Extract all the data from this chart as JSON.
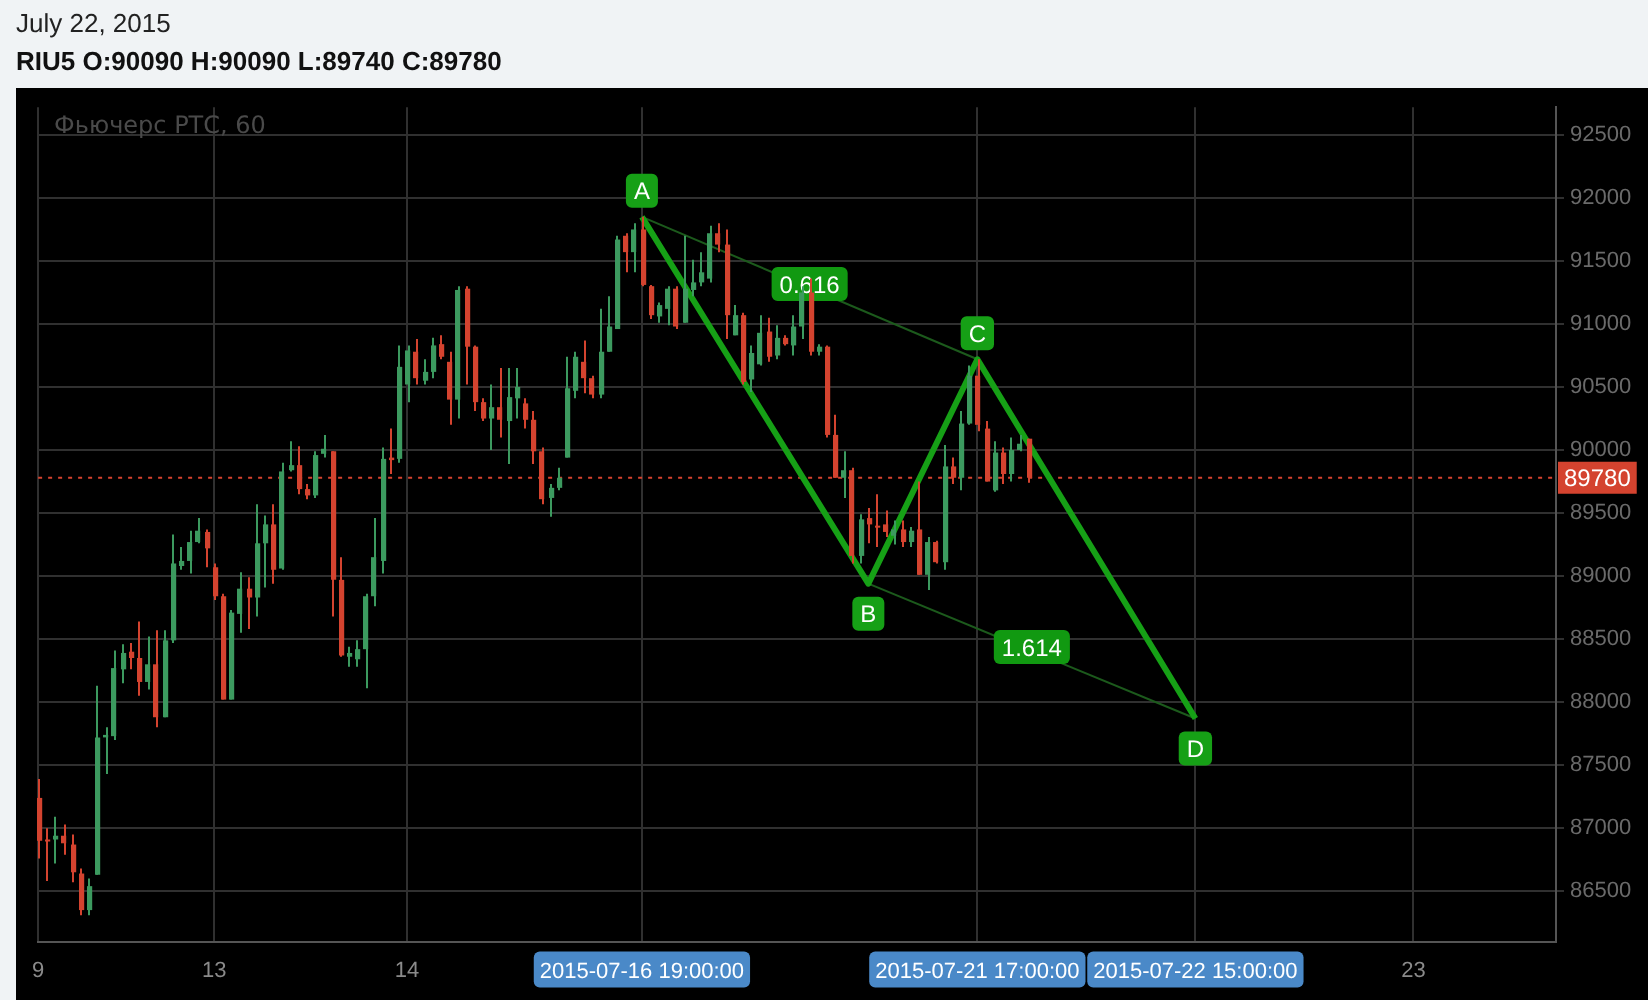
{
  "chart_data": {
    "type": "candlestick",
    "title": "RIU5 O:90090 H:90090 L:89740 C:89780",
    "subtitle": "Фьючерс РТС, 60",
    "annotations": [
      "July 22, 2015",
      "0.616",
      "1.614"
    ],
    "categories": [
      "9",
      null,
      null,
      null,
      null,
      null,
      null,
      null,
      null,
      null,
      null,
      null,
      null,
      null,
      null,
      null,
      null,
      null,
      null,
      null,
      null,
      "13",
      null,
      null,
      null,
      null,
      null,
      null,
      null,
      null,
      null,
      null,
      null,
      null,
      null,
      null,
      null,
      null,
      null,
      null,
      null,
      null,
      null,
      null,
      "14",
      null,
      null,
      null,
      null,
      null,
      null,
      null,
      null,
      null,
      null,
      null,
      null,
      null,
      null,
      null,
      null,
      null,
      null,
      null,
      null,
      null,
      null,
      null,
      null,
      null,
      null,
      null,
      "2015-07-16 19:00:00",
      null,
      null,
      null,
      null,
      null,
      null,
      null,
      null,
      null,
      null,
      null,
      null,
      null,
      null,
      null,
      null,
      null,
      null,
      null,
      null,
      null,
      null,
      null,
      null,
      null,
      null,
      null,
      null,
      null,
      null,
      null,
      null,
      null,
      null,
      null,
      null,
      null,
      null,
      null,
      "2015-07-21 17:00:00",
      null,
      null,
      null,
      null,
      null,
      null,
      null,
      null,
      null,
      null,
      null,
      null,
      null,
      null,
      null,
      null,
      null,
      null,
      null,
      null,
      null,
      null,
      null,
      null,
      null,
      "2015-07-22 15:00:00",
      null,
      null,
      null,
      null,
      null,
      null,
      null,
      null,
      null,
      null,
      null,
      null,
      null,
      null,
      null,
      null,
      null,
      null,
      null,
      null,
      null,
      null,
      null,
      null,
      null,
      "23",
      null,
      null,
      null,
      null,
      null,
      null,
      null,
      null,
      null,
      null,
      null,
      null,
      null,
      null,
      null,
      null,
      null
    ],
    "ohlc": [
      [
        87240,
        87390,
        86760,
        86900
      ],
      [
        86910,
        87000,
        86580,
        86900
      ],
      [
        86910,
        87090,
        86720,
        86940
      ],
      [
        86940,
        87030,
        86790,
        86880
      ],
      [
        86870,
        86950,
        86570,
        86650
      ],
      [
        86640,
        86680,
        86310,
        86350
      ],
      [
        86350,
        86600,
        86310,
        86540
      ],
      [
        86630,
        88130,
        86630,
        87720
      ],
      [
        87720,
        87800,
        87430,
        87740
      ],
      [
        87730,
        88410,
        87700,
        88270
      ],
      [
        88260,
        88460,
        88150,
        88390
      ],
      [
        88400,
        88470,
        88260,
        88350
      ],
      [
        88350,
        88640,
        88050,
        88160
      ],
      [
        88160,
        88520,
        88100,
        88300
      ],
      [
        88300,
        88570,
        87800,
        87880
      ],
      [
        87880,
        88570,
        87880,
        88490
      ],
      [
        88490,
        89330,
        88470,
        89100
      ],
      [
        89080,
        89230,
        89050,
        89120
      ],
      [
        89120,
        89360,
        89020,
        89270
      ],
      [
        89270,
        89460,
        89260,
        89360
      ],
      [
        89350,
        89370,
        89070,
        89220
      ],
      [
        89070,
        89100,
        88810,
        88840
      ],
      [
        88840,
        88860,
        88020,
        88020
      ],
      [
        88020,
        88730,
        88020,
        88710
      ],
      [
        88700,
        89030,
        88550,
        88900
      ],
      [
        88900,
        88990,
        88580,
        88830
      ],
      [
        88830,
        89570,
        88680,
        89260
      ],
      [
        89260,
        89480,
        88910,
        89410
      ],
      [
        89410,
        89570,
        88940,
        89050
      ],
      [
        89060,
        89900,
        89050,
        89830
      ],
      [
        89840,
        90070,
        89830,
        89880
      ],
      [
        89880,
        90030,
        89650,
        89690
      ],
      [
        89690,
        89730,
        89610,
        89640
      ],
      [
        89640,
        89990,
        89620,
        89960
      ],
      [
        89970,
        90120,
        89940,
        90010
      ],
      [
        89990,
        89990,
        88680,
        88970
      ],
      [
        88970,
        89150,
        88360,
        88370
      ],
      [
        88360,
        88440,
        88280,
        88390
      ],
      [
        88340,
        88490,
        88280,
        88420
      ],
      [
        88420,
        88860,
        88110,
        88840
      ],
      [
        88840,
        89460,
        88760,
        89150
      ],
      [
        89120,
        90020,
        89020,
        89930
      ],
      [
        89940,
        90170,
        89810,
        89920
      ],
      [
        89930,
        90830,
        89900,
        90660
      ],
      [
        90520,
        90830,
        90380,
        90790
      ],
      [
        90780,
        90880,
        90520,
        90570
      ],
      [
        90550,
        90720,
        90520,
        90620
      ],
      [
        90620,
        90890,
        90570,
        90830
      ],
      [
        90840,
        90910,
        90720,
        90740
      ],
      [
        90700,
        90780,
        90200,
        90400
      ],
      [
        90400,
        91300,
        90250,
        91270
      ],
      [
        91280,
        91300,
        90520,
        90820
      ],
      [
        90820,
        90830,
        90310,
        90380
      ],
      [
        90380,
        90410,
        90230,
        90250
      ],
      [
        90250,
        90520,
        90000,
        90340
      ],
      [
        90340,
        90650,
        90100,
        90240
      ],
      [
        90230,
        90650,
        89890,
        90420
      ],
      [
        90410,
        90650,
        90250,
        90500
      ],
      [
        90370,
        90410,
        90170,
        90240
      ],
      [
        90240,
        90310,
        89890,
        89990
      ],
      [
        89990,
        90020,
        89570,
        89610
      ],
      [
        89620,
        89730,
        89470,
        89700
      ],
      [
        89700,
        89860,
        89680,
        89780
      ],
      [
        89940,
        90740,
        89940,
        90490
      ],
      [
        90470,
        90780,
        90410,
        90740
      ],
      [
        90700,
        90870,
        90450,
        90570
      ],
      [
        90570,
        90590,
        90410,
        90440
      ],
      [
        90440,
        91120,
        90410,
        90780
      ],
      [
        90780,
        91220,
        90780,
        90980
      ],
      [
        90960,
        91700,
        90960,
        91670
      ],
      [
        91700,
        91720,
        91410,
        91570
      ],
      [
        91570,
        91800,
        91410,
        91750
      ],
      [
        91750,
        91850,
        91300,
        91310
      ],
      [
        91300,
        91310,
        91040,
        91070
      ],
      [
        91060,
        91170,
        91010,
        91150
      ],
      [
        91120,
        91300,
        90990,
        91280
      ],
      [
        91280,
        91300,
        90960,
        90980
      ],
      [
        91010,
        91700,
        91010,
        91280
      ],
      [
        91270,
        91510,
        91220,
        91330
      ],
      [
        91330,
        91570,
        91300,
        91410
      ],
      [
        91360,
        91780,
        91330,
        91720
      ],
      [
        91720,
        91800,
        91570,
        91630
      ],
      [
        91630,
        91750,
        90880,
        91070
      ],
      [
        90910,
        91150,
        90910,
        91070
      ],
      [
        91070,
        91090,
        90520,
        90540
      ],
      [
        90560,
        90830,
        90460,
        90770
      ],
      [
        90680,
        91070,
        90670,
        90930
      ],
      [
        90940,
        91050,
        90700,
        90740
      ],
      [
        90750,
        90990,
        90720,
        90890
      ],
      [
        90890,
        90910,
        90830,
        90840
      ],
      [
        90830,
        91070,
        90750,
        90980
      ],
      [
        90980,
        91300,
        90880,
        91250
      ],
      [
        91250,
        91360,
        90750,
        90780
      ],
      [
        90780,
        90840,
        90750,
        90820
      ],
      [
        90820,
        90830,
        90100,
        90120
      ],
      [
        90120,
        90280,
        89780,
        89780
      ],
      [
        89780,
        89990,
        89620,
        89840
      ],
      [
        89840,
        89860,
        89100,
        89160
      ],
      [
        89160,
        89490,
        89100,
        89450
      ],
      [
        89460,
        89540,
        89260,
        89410
      ],
      [
        89400,
        89650,
        89230,
        89390
      ],
      [
        89410,
        89520,
        89310,
        89350
      ],
      [
        89320,
        89440,
        89250,
        89370
      ],
      [
        89370,
        89440,
        89230,
        89270
      ],
      [
        89270,
        89390,
        89230,
        89360
      ],
      [
        89370,
        89750,
        89010,
        89010
      ],
      [
        89010,
        89310,
        88890,
        89270
      ],
      [
        89270,
        89280,
        89100,
        89110
      ],
      [
        89110,
        90040,
        89050,
        89870
      ],
      [
        89870,
        89940,
        89730,
        89780
      ],
      [
        89780,
        90310,
        89680,
        90210
      ],
      [
        90210,
        90670,
        90200,
        90590
      ],
      [
        90590,
        90720,
        90150,
        90200
      ],
      [
        90170,
        90230,
        89750,
        89750
      ],
      [
        89680,
        90070,
        89670,
        89980
      ],
      [
        89980,
        90020,
        89730,
        89810
      ],
      [
        89810,
        90100,
        89750,
        90000
      ],
      [
        90000,
        90120,
        89990,
        90050
      ],
      [
        90090,
        90090,
        89740,
        89780
      ],
      null,
      null,
      null,
      null,
      null,
      null,
      null,
      null,
      null,
      null,
      null,
      null,
      null,
      null,
      null,
      null,
      null,
      null,
      null,
      null,
      null,
      null,
      null,
      null,
      null,
      null,
      null,
      null,
      null,
      null,
      null,
      null,
      null,
      null,
      null,
      null,
      null,
      null,
      null,
      null,
      null,
      null,
      null,
      null,
      null,
      null,
      null,
      null,
      null,
      null,
      null,
      null,
      null,
      null,
      null,
      null,
      null,
      null,
      null,
      null,
      null,
      null,
      null
    ],
    "colors": [
      "#d4432f",
      "#d4432f",
      "#3c9a5f",
      "#d4432f",
      "#d4432f",
      "#d4432f",
      "#3c9a5f",
      "#3c9a5f",
      "#3c9a5f",
      "#3c9a5f",
      "#3c9a5f",
      "#d4432f",
      "#d4432f",
      "#3c9a5f",
      "#d4432f",
      "#3c9a5f",
      "#3c9a5f",
      "#3c9a5f",
      "#3c9a5f",
      "#3c9a5f",
      "#d4432f",
      "#d4432f",
      "#d4432f",
      "#3c9a5f",
      "#3c9a5f",
      "#d4432f",
      "#3c9a5f",
      "#3c9a5f",
      "#d4432f",
      "#3c9a5f",
      "#3c9a5f",
      "#d4432f",
      "#d4432f",
      "#3c9a5f",
      "#3c9a5f",
      "#d4432f",
      "#d4432f",
      "#3c9a5f",
      "#3c9a5f",
      "#3c9a5f",
      "#3c9a5f",
      "#3c9a5f",
      "#d4432f",
      "#3c9a5f",
      "#3c9a5f",
      "#d4432f",
      "#3c9a5f",
      "#3c9a5f",
      "#d4432f",
      "#d4432f",
      "#3c9a5f",
      "#d4432f",
      "#d4432f",
      "#d4432f",
      "#3c9a5f",
      "#d4432f",
      "#3c9a5f",
      "#3c9a5f",
      "#d4432f",
      "#d4432f",
      "#d4432f",
      "#3c9a5f",
      "#3c9a5f",
      "#3c9a5f",
      "#3c9a5f",
      "#d4432f",
      "#d4432f",
      "#3c9a5f",
      "#3c9a5f",
      "#3c9a5f",
      "#d4432f",
      "#3c9a5f",
      "#d4432f",
      "#d4432f",
      "#3c9a5f",
      "#3c9a5f",
      "#d4432f",
      "#3c9a5f",
      "#3c9a5f",
      "#3c9a5f",
      "#3c9a5f",
      "#d4432f",
      "#d4432f",
      "#3c9a5f",
      "#d4432f",
      "#3c9a5f",
      "#3c9a5f",
      "#d4432f",
      "#3c9a5f",
      "#d4432f",
      "#3c9a5f",
      "#3c9a5f",
      "#d4432f",
      "#3c9a5f",
      "#d4432f",
      "#d4432f",
      "#3c9a5f",
      "#d4432f",
      "#3c9a5f",
      "#d4432f",
      "#d4432f",
      "#d4432f",
      "#3c9a5f",
      "#d4432f",
      "#3c9a5f",
      "#d4432f",
      "#3c9a5f",
      "#d4432f",
      "#3c9a5f",
      "#d4432f",
      "#3c9a5f",
      "#3c9a5f",
      "#d4432f",
      "#d4432f",
      "#3c9a5f",
      "#d4432f",
      "#3c9a5f",
      "#3c9a5f",
      "#d4432f",
      null,
      null,
      null,
      null,
      null,
      null,
      null,
      null,
      null,
      null,
      null,
      null,
      null,
      null,
      null,
      null,
      null,
      null,
      null,
      null,
      null,
      null,
      null,
      null,
      null,
      null,
      null,
      null,
      null,
      null,
      null,
      null,
      null,
      null,
      null,
      null,
      null,
      null,
      null,
      null,
      null,
      null,
      null,
      null,
      null,
      null,
      null,
      null,
      null,
      null,
      null,
      null,
      null,
      null,
      null,
      null,
      null,
      null,
      null,
      null,
      null,
      null,
      null
    ],
    "series": [
      {
        "type": "line",
        "color": "#16a016",
        "values": [
          null,
          null,
          null,
          null,
          null,
          null,
          null,
          null,
          null,
          null,
          null,
          null,
          null,
          null,
          null,
          null,
          null,
          null,
          null,
          null,
          null,
          null,
          null,
          null,
          null,
          null,
          null,
          null,
          null,
          null,
          null,
          null,
          null,
          null,
          null,
          null,
          null,
          null,
          null,
          null,
          null,
          null,
          null,
          null,
          null,
          null,
          null,
          null,
          null,
          null,
          null,
          null,
          null,
          null,
          null,
          null,
          null,
          null,
          null,
          null,
          null,
          null,
          null,
          null,
          null,
          null,
          null,
          null,
          null,
          null,
          null,
          null,
          91850,
          null,
          null,
          null,
          null,
          null,
          null,
          null,
          null,
          null,
          null,
          null,
          null,
          null,
          null,
          null,
          null,
          null,
          null,
          null,
          null,
          null,
          null,
          null,
          null,
          null,
          null,
          88940,
          null,
          null,
          null,
          null,
          null,
          null,
          null,
          null,
          null,
          null,
          null,
          null,
          90720,
          null,
          null,
          null,
          null,
          null,
          null,
          null,
          null,
          null,
          null,
          null,
          null,
          null,
          null,
          null,
          null,
          null,
          null,
          null,
          null,
          null,
          null,
          null,
          null,
          null,
          87870,
          null,
          null,
          null,
          null,
          null,
          null,
          null,
          null,
          null,
          null,
          null,
          null,
          null,
          null,
          null,
          null,
          null,
          null,
          null,
          null,
          null,
          null,
          null,
          null,
          null,
          null,
          null,
          null,
          null,
          null,
          null,
          null,
          null,
          null,
          null,
          null,
          null,
          null,
          null,
          null,
          null,
          null,
          null
        ],
        "value_labels": [
          null,
          null,
          null,
          null,
          null,
          null,
          null,
          null,
          null,
          null,
          null,
          null,
          null,
          null,
          null,
          null,
          null,
          null,
          null,
          null,
          null,
          null,
          null,
          null,
          null,
          null,
          null,
          null,
          null,
          null,
          null,
          null,
          null,
          null,
          null,
          null,
          null,
          null,
          null,
          null,
          null,
          null,
          null,
          null,
          null,
          null,
          null,
          null,
          null,
          null,
          null,
          null,
          null,
          null,
          null,
          null,
          null,
          null,
          null,
          null,
          null,
          null,
          null,
          null,
          null,
          null,
          null,
          null,
          null,
          null,
          null,
          null,
          "A",
          null,
          null,
          null,
          null,
          null,
          null,
          null,
          null,
          null,
          null,
          null,
          null,
          null,
          null,
          null,
          null,
          null,
          null,
          null,
          null,
          null,
          null,
          null,
          null,
          null,
          null,
          "B",
          null,
          null,
          null,
          null,
          null,
          null,
          null,
          null,
          null,
          null,
          null,
          null,
          "C",
          null,
          null,
          null,
          null,
          null,
          null,
          null,
          null,
          null,
          null,
          null,
          null,
          null,
          null,
          null,
          null,
          null,
          null,
          null,
          null,
          null,
          null,
          null,
          null,
          null,
          "D",
          null,
          null,
          null,
          null,
          null,
          null,
          null,
          null,
          null,
          null,
          null,
          null,
          null,
          null,
          null,
          null,
          null,
          null,
          null,
          null,
          null,
          null,
          null,
          null,
          null,
          null,
          null,
          null,
          null,
          null,
          null,
          null,
          null,
          null,
          null,
          null,
          null,
          null,
          null,
          null,
          null,
          null,
          null
        ]
      },
      {
        "type": "line",
        "color": "#1c5a1c",
        "values": [
          null,
          null,
          null,
          null,
          null,
          null,
          null,
          null,
          null,
          null,
          null,
          null,
          null,
          null,
          null,
          null,
          null,
          null,
          null,
          null,
          null,
          null,
          null,
          null,
          null,
          null,
          null,
          null,
          null,
          null,
          null,
          null,
          null,
          null,
          null,
          null,
          null,
          null,
          null,
          null,
          null,
          null,
          null,
          null,
          null,
          null,
          null,
          null,
          null,
          null,
          null,
          null,
          null,
          null,
          null,
          null,
          null,
          null,
          null,
          null,
          null,
          null,
          null,
          null,
          null,
          null,
          null,
          null,
          null,
          null,
          null,
          null,
          91850,
          null,
          null,
          null,
          null,
          null,
          null,
          null,
          null,
          null,
          null,
          null,
          null,
          null,
          null,
          null,
          null,
          null,
          null,
          null,
          null,
          null,
          null,
          null,
          null,
          null,
          null,
          null,
          null,
          null,
          null,
          null,
          null,
          null,
          null,
          null,
          null,
          null,
          null,
          null,
          90720,
          null,
          null,
          null,
          null,
          null,
          null,
          null,
          null,
          null,
          null,
          null,
          null,
          null,
          null,
          null,
          null,
          null,
          null,
          null,
          null,
          null,
          null,
          null,
          null,
          null,
          null,
          null,
          null,
          null,
          null,
          null,
          null,
          null,
          null,
          null,
          null,
          null,
          null,
          null,
          null,
          null,
          null,
          null,
          null,
          null,
          null,
          null,
          null,
          null,
          null,
          null,
          null,
          null,
          null,
          null,
          null,
          null,
          null,
          null,
          null,
          null,
          null,
          null,
          null,
          null,
          null,
          null,
          null,
          null
        ]
      },
      {
        "type": "line",
        "color": "#1c5a1c",
        "values": [
          null,
          null,
          null,
          null,
          null,
          null,
          null,
          null,
          null,
          null,
          null,
          null,
          null,
          null,
          null,
          null,
          null,
          null,
          null,
          null,
          null,
          null,
          null,
          null,
          null,
          null,
          null,
          null,
          null,
          null,
          null,
          null,
          null,
          null,
          null,
          null,
          null,
          null,
          null,
          null,
          null,
          null,
          null,
          null,
          null,
          null,
          null,
          null,
          null,
          null,
          null,
          null,
          null,
          null,
          null,
          null,
          null,
          null,
          null,
          null,
          null,
          null,
          null,
          null,
          null,
          null,
          null,
          null,
          null,
          null,
          null,
          null,
          null,
          null,
          null,
          null,
          null,
          null,
          null,
          null,
          null,
          null,
          null,
          null,
          null,
          null,
          null,
          null,
          null,
          null,
          null,
          null,
          null,
          null,
          null,
          null,
          null,
          null,
          null,
          88940,
          null,
          null,
          null,
          null,
          null,
          null,
          null,
          null,
          null,
          null,
          null,
          null,
          null,
          null,
          null,
          null,
          null,
          null,
          null,
          null,
          null,
          null,
          null,
          null,
          null,
          null,
          null,
          null,
          null,
          null,
          null,
          null,
          null,
          null,
          null,
          null,
          null,
          null,
          87870,
          null,
          null,
          null,
          null,
          null,
          null,
          null,
          null,
          null,
          null,
          null,
          null,
          null,
          null,
          null,
          null,
          null,
          null,
          null,
          null,
          null,
          null,
          null,
          null,
          null,
          null,
          null,
          null,
          null,
          null,
          null,
          null,
          null,
          null,
          null,
          null,
          null,
          null,
          null,
          null,
          null,
          null,
          null
        ]
      }
    ],
    "ref_lines": [
      {
        "axis": "y",
        "value": 89780,
        "label": "89780",
        "color": "#d4432f",
        "line_style": "dotted"
      }
    ],
    "ylim": [
      86100,
      92720
    ],
    "yticks": [
      86500,
      87000,
      87500,
      88000,
      88500,
      89000,
      89500,
      90000,
      90500,
      91000,
      91500,
      92000,
      92500
    ],
    "grid": true,
    "legend": false
  }
}
